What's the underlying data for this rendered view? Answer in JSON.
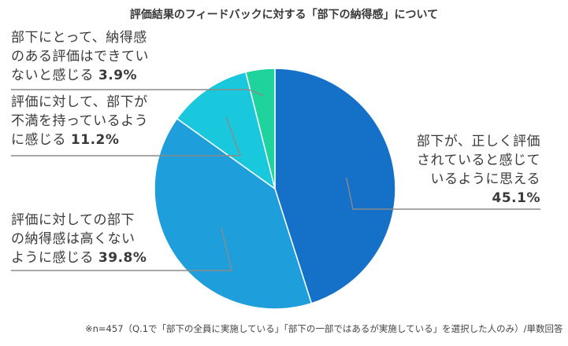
{
  "chart_data": {
    "type": "pie",
    "title": "評価結果のフィードバックに対する「部下の納得感」について",
    "slices": [
      {
        "lines": [
          "部下が、正しく評価",
          "されていると感じて",
          "いるように思える"
        ],
        "pct_label": "45.1%",
        "value": 45.1,
        "color": "#1570c8"
      },
      {
        "lines": [
          "評価に対しての部下",
          "の納得感は高くない",
          "ように感じる"
        ],
        "pct_label": "39.8%",
        "value": 39.8,
        "color": "#1e9fdc"
      },
      {
        "lines": [
          "評価に対して、部下が",
          "不満を持っているよう",
          "に感じる"
        ],
        "pct_label": "11.2%",
        "value": 11.2,
        "color": "#19c8dc"
      },
      {
        "lines": [
          "部下にとって、納得感",
          "のある評価はできてい",
          "ないと感じる"
        ],
        "pct_label": "3.9%",
        "value": 3.9,
        "color": "#1ed39c"
      }
    ],
    "start_angle_deg": 0,
    "direction": "clockwise",
    "legend": "none"
  },
  "footnote": "※n=457（Q.1で「部下の全員に実施している」「部下の一部ではあるが実施している」を選択した人のみ）/単数回答"
}
